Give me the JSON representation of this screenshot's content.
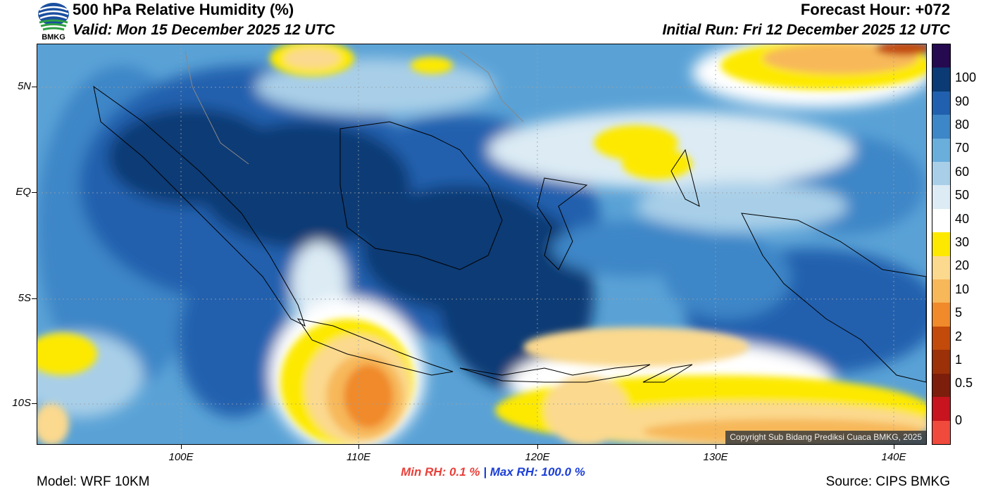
{
  "header": {
    "logo_text": "BMKG",
    "title": "500 hPa Relative Humidity (%)",
    "valid": "Valid: Mon 15 December 2025 12 UTC",
    "forecast_hour": "Forecast Hour: +072",
    "initial_run": "Initial Run: Fri 12 December 2025 12 UTC"
  },
  "map": {
    "lat_labels": [
      "5N",
      "EQ",
      "5S",
      "10S"
    ],
    "lon_labels": [
      "100E",
      "110E",
      "120E",
      "130E",
      "140E"
    ],
    "copyright": "Copyright Sub Bidang Prediksi Cuaca BMKG, 2025"
  },
  "colorbar": {
    "labels": [
      "100",
      "90",
      "80",
      "70",
      "60",
      "50",
      "40",
      "30",
      "20",
      "10",
      "5",
      "2",
      "1",
      "0.5",
      "0"
    ],
    "colors": [
      "#f04a3c",
      "#c8141e",
      "#7d1e0c",
      "#9c3008",
      "#c24a0a",
      "#f08a2a",
      "#f7b85a",
      "#fbd98e",
      "#fde900",
      "#ffffff",
      "#dcebf4",
      "#a9cfe8",
      "#6aaedc",
      "#3d86c7",
      "#2160ae",
      "#0b3a74",
      "#260a50"
    ]
  },
  "stats": {
    "min_label": "Min RH:",
    "min_value": "0.1 %",
    "separator": "|",
    "max_label": "Max RH:",
    "max_value": "100.0 %"
  },
  "footer": {
    "model": "Model: WRF 10KM",
    "source": "Source: CIPS BMKG"
  }
}
